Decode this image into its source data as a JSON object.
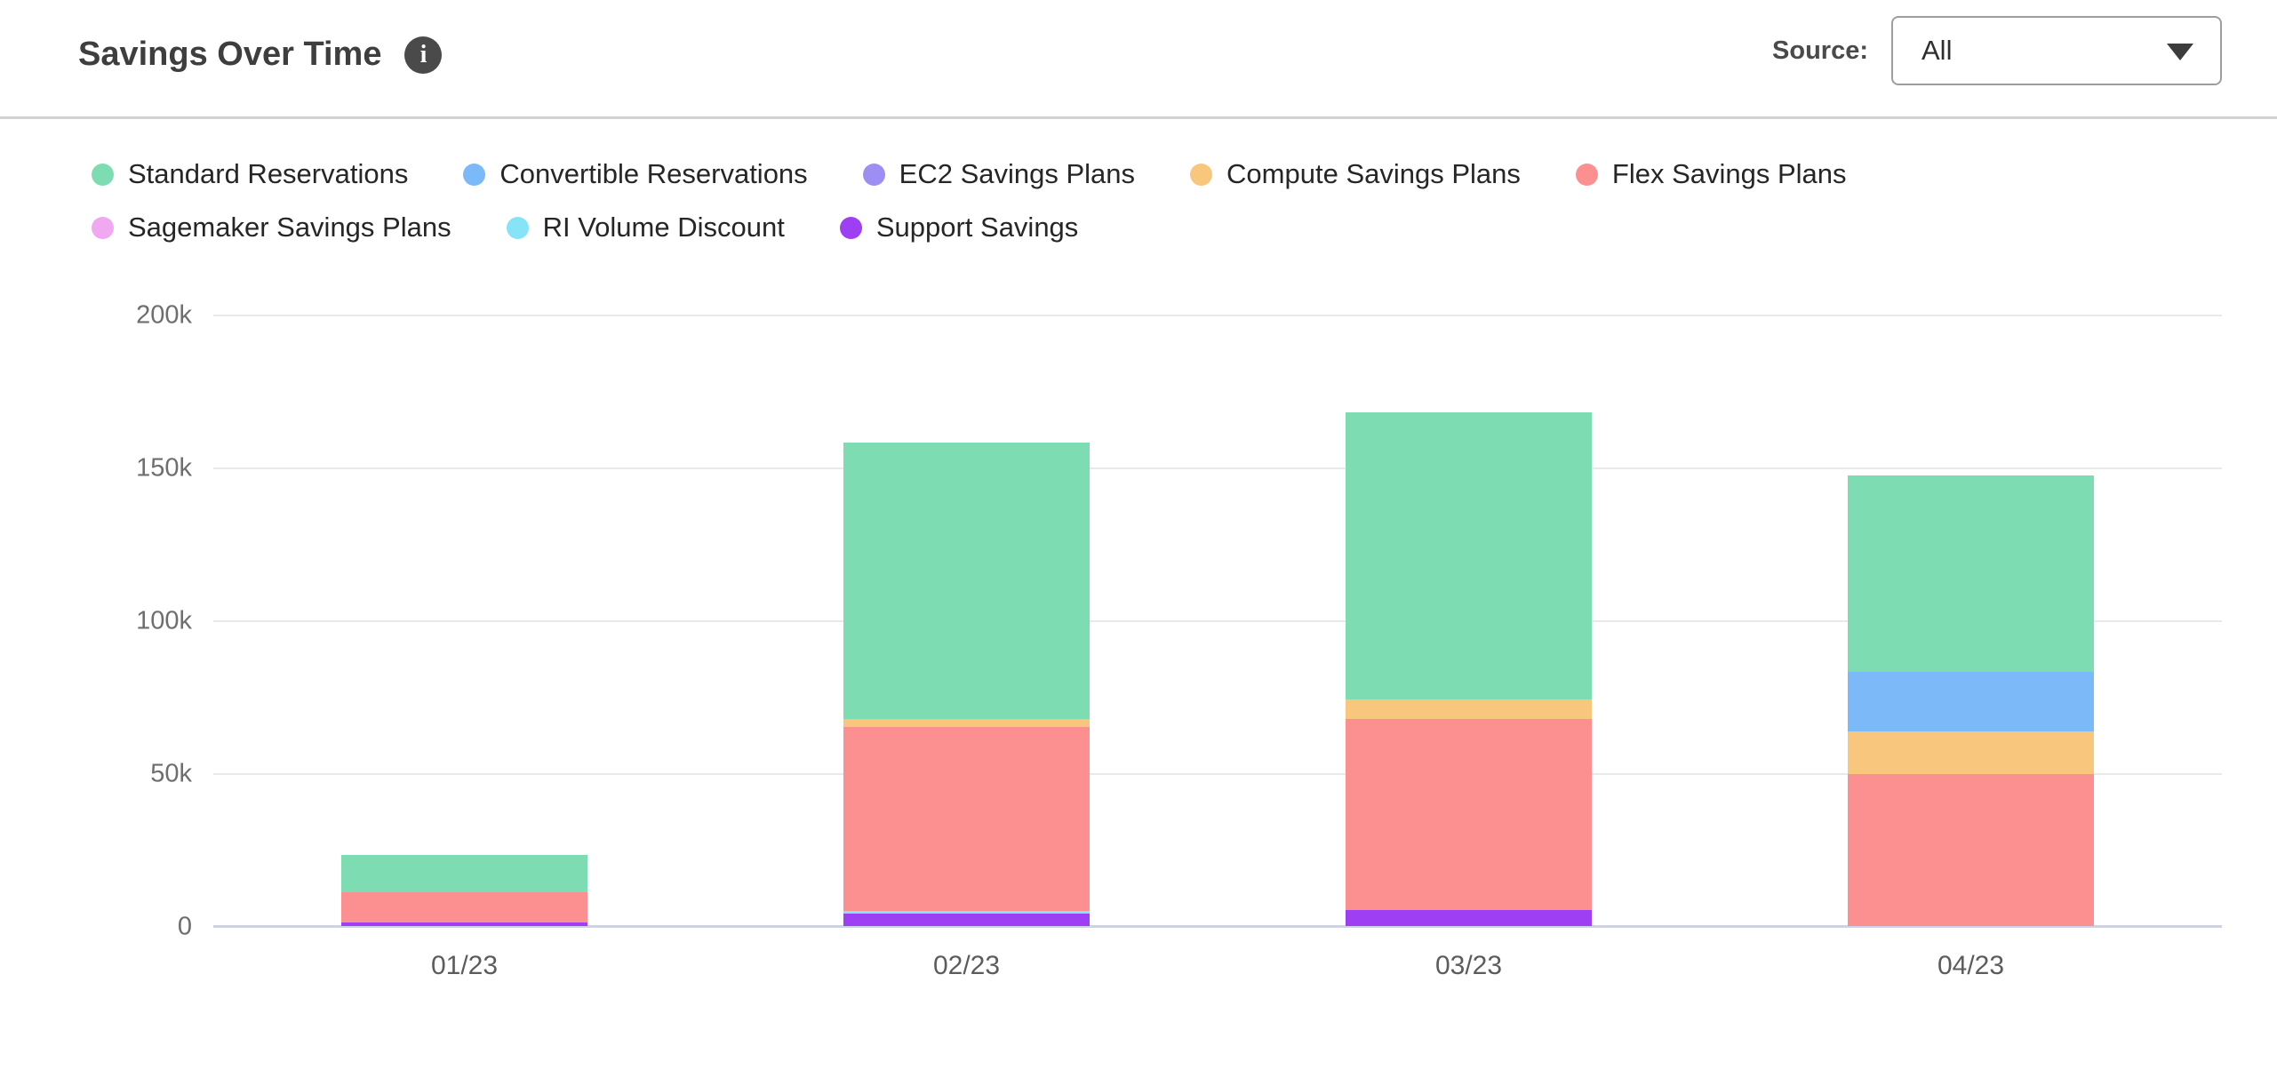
{
  "header": {
    "title": "Savings Over Time",
    "source_label": "Source:",
    "source_value": "All"
  },
  "chart_data": {
    "type": "bar",
    "stacked": true,
    "title": "Savings Over Time",
    "unit": "thousand dollars (k)",
    "categories": [
      "01/23",
      "02/23",
      "03/23",
      "04/23"
    ],
    "series": [
      {
        "name": "Standard Reservations",
        "color": "#7EDCB2",
        "values": [
          12.2,
          90.4,
          93.9,
          64.3
        ]
      },
      {
        "name": "Convertible Reservations",
        "color": "#7CB9F8",
        "values": [
          0,
          0,
          0,
          19.5
        ]
      },
      {
        "name": "EC2 Savings Plans",
        "color": "#9C8EF2",
        "values": [
          0,
          0,
          0,
          0
        ]
      },
      {
        "name": "Compute Savings Plans",
        "color": "#F8C77D",
        "values": [
          0,
          2.6,
          6.4,
          14.0
        ]
      },
      {
        "name": "Flex Savings Plans",
        "color": "#FC9090",
        "values": [
          9.9,
          60.2,
          62.5,
          49.7
        ]
      },
      {
        "name": "Sagemaker Savings Plans",
        "color": "#F0A9F0",
        "values": [
          0,
          0,
          0,
          0
        ]
      },
      {
        "name": "RI Volume Discount",
        "color": "#87E3F8",
        "values": [
          0,
          0.9,
          0,
          0
        ]
      },
      {
        "name": "Support Savings",
        "color": "#9E3FF3",
        "values": [
          1.2,
          4.1,
          5.2,
          0
        ]
      }
    ],
    "stack_order_bottom_to_top": [
      "Support Savings",
      "RI Volume Discount",
      "Sagemaker Savings Plans",
      "Flex Savings Plans",
      "Compute Savings Plans",
      "EC2 Savings Plans",
      "Convertible Reservations",
      "Standard Reservations"
    ],
    "totals": [
      23.3,
      158.2,
      168.0,
      147.5
    ],
    "y_ticks": [
      {
        "value": 0,
        "label": "0"
      },
      {
        "value": 50,
        "label": "50k"
      },
      {
        "value": 100,
        "label": "100k"
      },
      {
        "value": 150,
        "label": "150k"
      },
      {
        "value": 200,
        "label": "200k"
      }
    ],
    "ylim": [
      0,
      200
    ],
    "grid": true,
    "legend_position": "top",
    "axis_line_color": "#ccd2e8",
    "gridline_color": "#e9e9e9"
  }
}
